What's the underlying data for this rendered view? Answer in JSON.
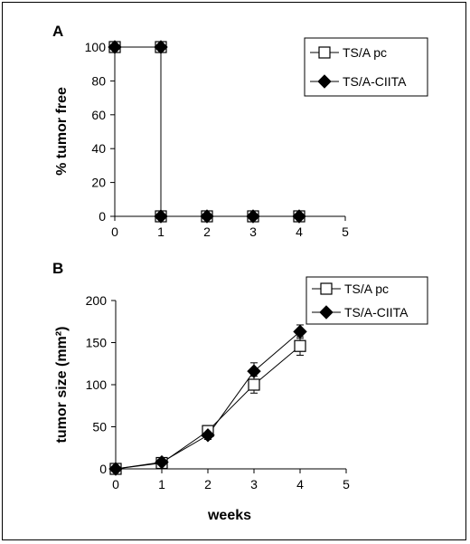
{
  "chart_data": [
    {
      "panel": "A",
      "type": "line",
      "ylabel": "% tumor free",
      "xlabel": "",
      "xlim": [
        0,
        5
      ],
      "ylim": [
        0,
        100
      ],
      "xticks": [
        "0",
        "1",
        "2",
        "3",
        "4",
        "5"
      ],
      "yticks": [
        "0",
        "20",
        "40",
        "60",
        "80",
        "100"
      ],
      "legend_position": "top-right",
      "series": [
        {
          "name": "TS/A pc",
          "marker": "open-square",
          "points": [
            {
              "x": 0,
              "y": 100
            },
            {
              "x": 1,
              "y": 100
            },
            {
              "x": 1,
              "y": 0
            },
            {
              "x": 2,
              "y": 0
            },
            {
              "x": 3,
              "y": 0
            },
            {
              "x": 4,
              "y": 0
            }
          ]
        },
        {
          "name": "TS/A-CIITA",
          "marker": "filled-diamond",
          "points": [
            {
              "x": 0,
              "y": 100
            },
            {
              "x": 1,
              "y": 100
            },
            {
              "x": 1,
              "y": 0
            },
            {
              "x": 2,
              "y": 0
            },
            {
              "x": 3,
              "y": 0
            },
            {
              "x": 4,
              "y": 0
            }
          ]
        }
      ]
    },
    {
      "panel": "B",
      "type": "line",
      "ylabel": "tumor size (mm²)",
      "xlabel": "weeks",
      "xlim": [
        0,
        5
      ],
      "ylim": [
        0,
        200
      ],
      "xticks": [
        "0",
        "1",
        "2",
        "3",
        "4",
        "5"
      ],
      "yticks": [
        "0",
        "50",
        "100",
        "150",
        "200"
      ],
      "legend_position": "top-right",
      "series": [
        {
          "name": "TS/A pc",
          "marker": "open-square",
          "points": [
            {
              "x": 0,
              "y": 0,
              "err": 1
            },
            {
              "x": 1,
              "y": 7,
              "err": 2
            },
            {
              "x": 2,
              "y": 45,
              "err": 6
            },
            {
              "x": 3,
              "y": 100,
              "err": 10
            },
            {
              "x": 4,
              "y": 146,
              "err": 11
            }
          ]
        },
        {
          "name": "TS/A-CIITA",
          "marker": "filled-diamond",
          "points": [
            {
              "x": 0,
              "y": 0,
              "err": 1
            },
            {
              "x": 1,
              "y": 8,
              "err": 2
            },
            {
              "x": 2,
              "y": 40,
              "err": 5
            },
            {
              "x": 3,
              "y": 116,
              "err": 10
            },
            {
              "x": 4,
              "y": 163,
              "err": 8
            }
          ]
        }
      ]
    }
  ]
}
